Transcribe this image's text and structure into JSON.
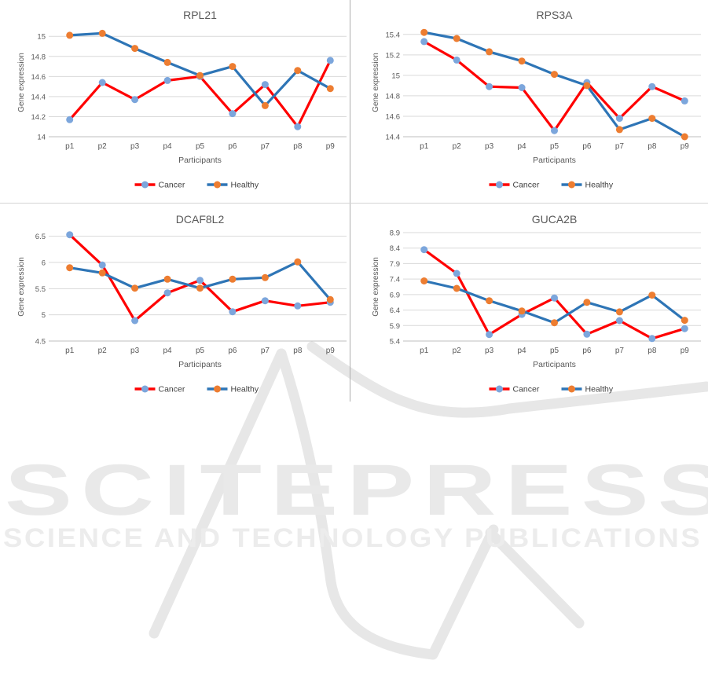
{
  "watermark": {
    "title": "SCITEPRESS",
    "subtitle": "SCIENCE AND TECHNOLOGY PUBLICATIONS",
    "color": "#E9E9E9"
  },
  "shared": {
    "ylabel": "Gene expression",
    "xlabel": "Participants",
    "categories": [
      "p1",
      "p2",
      "p3",
      "p4",
      "p5",
      "p6",
      "p7",
      "p8",
      "p9"
    ],
    "legend": [
      {
        "label": "Cancer",
        "line_color": "#FF0000",
        "marker_color": "#7CA6DC"
      },
      {
        "label": "Healthy",
        "line_color": "#2E75B6",
        "marker_color": "#ED7D31"
      }
    ],
    "grid_color": "#D9D9D9",
    "axis_color": "#BFBFBF",
    "text_color": "#595959"
  },
  "chart_data": [
    {
      "type": "line",
      "title": "RPL21",
      "xlabel": "Participants",
      "ylabel": "Gene expression",
      "categories": [
        "p1",
        "p2",
        "p3",
        "p4",
        "p5",
        "p6",
        "p7",
        "p8",
        "p9"
      ],
      "ylim": [
        14,
        15.08
      ],
      "yticks": [
        14,
        14.2,
        14.4,
        14.6,
        14.8,
        15
      ],
      "legend_position": "bottom",
      "grid": true,
      "series": [
        {
          "name": "Cancer",
          "line_color": "#FF0000",
          "marker_color": "#7CA6DC",
          "values": [
            14.17,
            14.54,
            14.37,
            14.56,
            14.6,
            14.23,
            14.52,
            14.1,
            14.76
          ]
        },
        {
          "name": "Healthy",
          "line_color": "#2E75B6",
          "marker_color": "#ED7D31",
          "values": [
            15.01,
            15.03,
            14.88,
            14.74,
            14.61,
            14.7,
            14.31,
            14.66,
            14.48
          ]
        }
      ]
    },
    {
      "type": "line",
      "title": "RPS3A",
      "xlabel": "Participants",
      "ylabel": "Gene expression",
      "categories": [
        "p1",
        "p2",
        "p3",
        "p4",
        "p5",
        "p6",
        "p7",
        "p8",
        "p9"
      ],
      "ylim": [
        14.4,
        15.46
      ],
      "yticks": [
        14.4,
        14.6,
        14.8,
        15,
        15.2,
        15.4
      ],
      "legend_position": "bottom",
      "grid": true,
      "series": [
        {
          "name": "Cancer",
          "line_color": "#FF0000",
          "marker_color": "#7CA6DC",
          "values": [
            15.33,
            15.15,
            14.89,
            14.88,
            14.46,
            14.93,
            14.58,
            14.89,
            14.75
          ]
        },
        {
          "name": "Healthy",
          "line_color": "#2E75B6",
          "marker_color": "#ED7D31",
          "values": [
            15.42,
            15.36,
            15.23,
            15.14,
            15.01,
            14.9,
            14.47,
            14.58,
            14.4
          ]
        }
      ]
    },
    {
      "type": "line",
      "title": "DCAF8L2",
      "xlabel": "Participants",
      "ylabel": "Gene expression",
      "categories": [
        "p1",
        "p2",
        "p3",
        "p4",
        "p5",
        "p6",
        "p7",
        "p8",
        "p9"
      ],
      "ylim": [
        4.5,
        6.57
      ],
      "yticks": [
        4.5,
        5,
        5.5,
        6,
        6.5
      ],
      "legend_position": "bottom",
      "grid": true,
      "series": [
        {
          "name": "Cancer",
          "line_color": "#FF0000",
          "marker_color": "#7CA6DC",
          "values": [
            6.53,
            5.95,
            4.89,
            5.42,
            5.66,
            5.06,
            5.27,
            5.17,
            5.24
          ]
        },
        {
          "name": "Healthy",
          "line_color": "#2E75B6",
          "marker_color": "#ED7D31",
          "values": [
            5.9,
            5.8,
            5.51,
            5.68,
            5.51,
            5.68,
            5.71,
            6.01,
            5.29
          ]
        }
      ]
    },
    {
      "type": "line",
      "title": "GUCA2B",
      "xlabel": "Participants",
      "ylabel": "Gene expression",
      "categories": [
        "p1",
        "p2",
        "p3",
        "p4",
        "p5",
        "p6",
        "p7",
        "p8",
        "p9"
      ],
      "ylim": [
        5.4,
        8.9
      ],
      "yticks": [
        5.4,
        5.9,
        6.4,
        6.9,
        7.4,
        7.9,
        8.4,
        8.9
      ],
      "legend_position": "bottom",
      "grid": true,
      "series": [
        {
          "name": "Cancer",
          "line_color": "#FF0000",
          "marker_color": "#7CA6DC",
          "values": [
            8.35,
            7.58,
            5.61,
            6.26,
            6.79,
            5.62,
            6.06,
            5.48,
            5.8
          ]
        },
        {
          "name": "Healthy",
          "line_color": "#2E75B6",
          "marker_color": "#ED7D31",
          "values": [
            7.34,
            7.1,
            6.7,
            6.37,
            5.99,
            6.65,
            6.34,
            6.88,
            6.07
          ]
        }
      ]
    }
  ]
}
